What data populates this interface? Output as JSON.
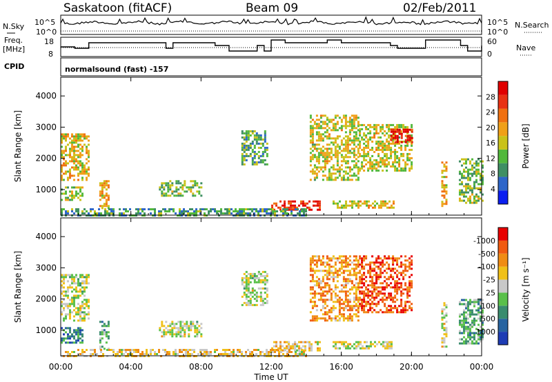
{
  "header": {
    "station": "Saskatoon (fitACF)",
    "beam": "Beam 09",
    "date": "02/Feb/2011"
  },
  "status_panels": {
    "nsky_label": "N.Sky",
    "nsearch_label": "N.Search",
    "noise_ticks_left": [
      "10^5",
      "10^0"
    ],
    "noise_ticks_right": [
      "10^5",
      "10^0"
    ],
    "freq_label": "Freq.",
    "freq_unit": "[MHz]",
    "freq_ticks": [
      "18",
      "8"
    ],
    "nave_label": "Nave",
    "nave_ticks": [
      "60",
      "0"
    ],
    "cpid_label": "CPID",
    "cpid_value": "normalsound (fast) -157"
  },
  "chart_data": [
    {
      "type": "heatmap",
      "name": "power",
      "ylabel": "Slant Range [km]",
      "xlabel": "",
      "x_ticks": [
        "00:00",
        "04:00",
        "08:00",
        "12:00",
        "16:00",
        "20:00",
        "00:00"
      ],
      "y_ticks": [
        "1000",
        "2000",
        "3000",
        "4000"
      ],
      "xlim_hours": [
        0,
        24
      ],
      "ylim_km": [
        180,
        4600
      ],
      "colorbar_label": "Power [dB]",
      "colorbar_ticks": [
        "4",
        "8",
        "12",
        "16",
        "20",
        "24",
        "28"
      ],
      "colorbar_colors": [
        "#0b1ef0",
        "#2e66c9",
        "#3f8f64",
        "#52b83c",
        "#c9c21a",
        "#f0a018",
        "#f07010",
        "#e83214",
        "#e00000"
      ],
      "echo_regions": [
        {
          "t0": 0.0,
          "t1": 1.6,
          "r0": 1300,
          "r1": 2800,
          "level": 0.55
        },
        {
          "t0": 0.0,
          "t1": 1.2,
          "r0": 700,
          "r1": 1100,
          "level": 0.45
        },
        {
          "t0": 2.2,
          "t1": 2.7,
          "r0": 400,
          "r1": 1300,
          "level": 0.6
        },
        {
          "t0": 5.6,
          "t1": 8.0,
          "r0": 800,
          "r1": 1300,
          "level": 0.4
        },
        {
          "t0": 10.3,
          "t1": 11.8,
          "r0": 1800,
          "r1": 2900,
          "level": 0.35
        },
        {
          "t0": 12.0,
          "t1": 14.8,
          "r0": 350,
          "r1": 650,
          "level": 0.85
        },
        {
          "t0": 14.2,
          "t1": 17.0,
          "r0": 1300,
          "r1": 3400,
          "level": 0.5
        },
        {
          "t0": 17.0,
          "t1": 20.0,
          "r0": 1600,
          "r1": 3100,
          "level": 0.5
        },
        {
          "t0": 18.8,
          "t1": 20.0,
          "r0": 2500,
          "r1": 2950,
          "level": 0.9
        },
        {
          "t0": 15.5,
          "t1": 19.0,
          "r0": 450,
          "r1": 650,
          "level": 0.55
        },
        {
          "t0": 21.7,
          "t1": 22.0,
          "r0": 500,
          "r1": 1900,
          "level": 0.6
        },
        {
          "t0": 22.7,
          "t1": 24.0,
          "r0": 600,
          "r1": 2000,
          "level": 0.4
        },
        {
          "t0": 0.0,
          "t1": 14.0,
          "r0": 180,
          "r1": 400,
          "level": 0.3
        }
      ]
    },
    {
      "type": "heatmap",
      "name": "velocity",
      "ylabel": "Slant Range [km]",
      "xlabel": "Time UT",
      "x_ticks": [
        "00:00",
        "04:00",
        "08:00",
        "12:00",
        "16:00",
        "20:00",
        "00:00"
      ],
      "y_ticks": [
        "1000",
        "2000",
        "3000",
        "4000"
      ],
      "xlim_hours": [
        0,
        24
      ],
      "ylim_km": [
        180,
        4600
      ],
      "colorbar_label": "Velocity [m s⁻¹]",
      "colorbar_ticks": [
        "1000",
        "500",
        "100",
        "25",
        "-25",
        "-100",
        "-500",
        "-1000"
      ],
      "colorbar_colors": [
        "#1e3cb4",
        "#2864a0",
        "#3a8c6e",
        "#5ac04a",
        "#c8c8c8",
        "#f0c018",
        "#f08c14",
        "#f05a10",
        "#e80000"
      ],
      "echo_regions": [
        {
          "t0": 0.0,
          "t1": 1.6,
          "r0": 1300,
          "r1": 2800,
          "level": 0.5
        },
        {
          "t0": 0.0,
          "t1": 1.2,
          "r0": 600,
          "r1": 1100,
          "level": 0.25
        },
        {
          "t0": 2.2,
          "t1": 2.7,
          "r0": 400,
          "r1": 1300,
          "level": 0.35
        },
        {
          "t0": 5.6,
          "t1": 8.0,
          "r0": 800,
          "r1": 1300,
          "level": 0.5
        },
        {
          "t0": 10.3,
          "t1": 11.8,
          "r0": 1800,
          "r1": 2900,
          "level": 0.5
        },
        {
          "t0": 12.0,
          "t1": 14.8,
          "r0": 350,
          "r1": 650,
          "level": 0.6
        },
        {
          "t0": 14.2,
          "t1": 17.0,
          "r0": 1300,
          "r1": 3400,
          "level": 0.7
        },
        {
          "t0": 17.0,
          "t1": 20.0,
          "r0": 1600,
          "r1": 3400,
          "level": 0.85
        },
        {
          "t0": 15.5,
          "t1": 19.0,
          "r0": 450,
          "r1": 650,
          "level": 0.5
        },
        {
          "t0": 21.7,
          "t1": 22.0,
          "r0": 500,
          "r1": 1900,
          "level": 0.5
        },
        {
          "t0": 22.7,
          "t1": 24.0,
          "r0": 600,
          "r1": 2000,
          "level": 0.35
        },
        {
          "t0": 0.0,
          "t1": 14.0,
          "r0": 180,
          "r1": 400,
          "level": 0.6
        }
      ]
    }
  ]
}
